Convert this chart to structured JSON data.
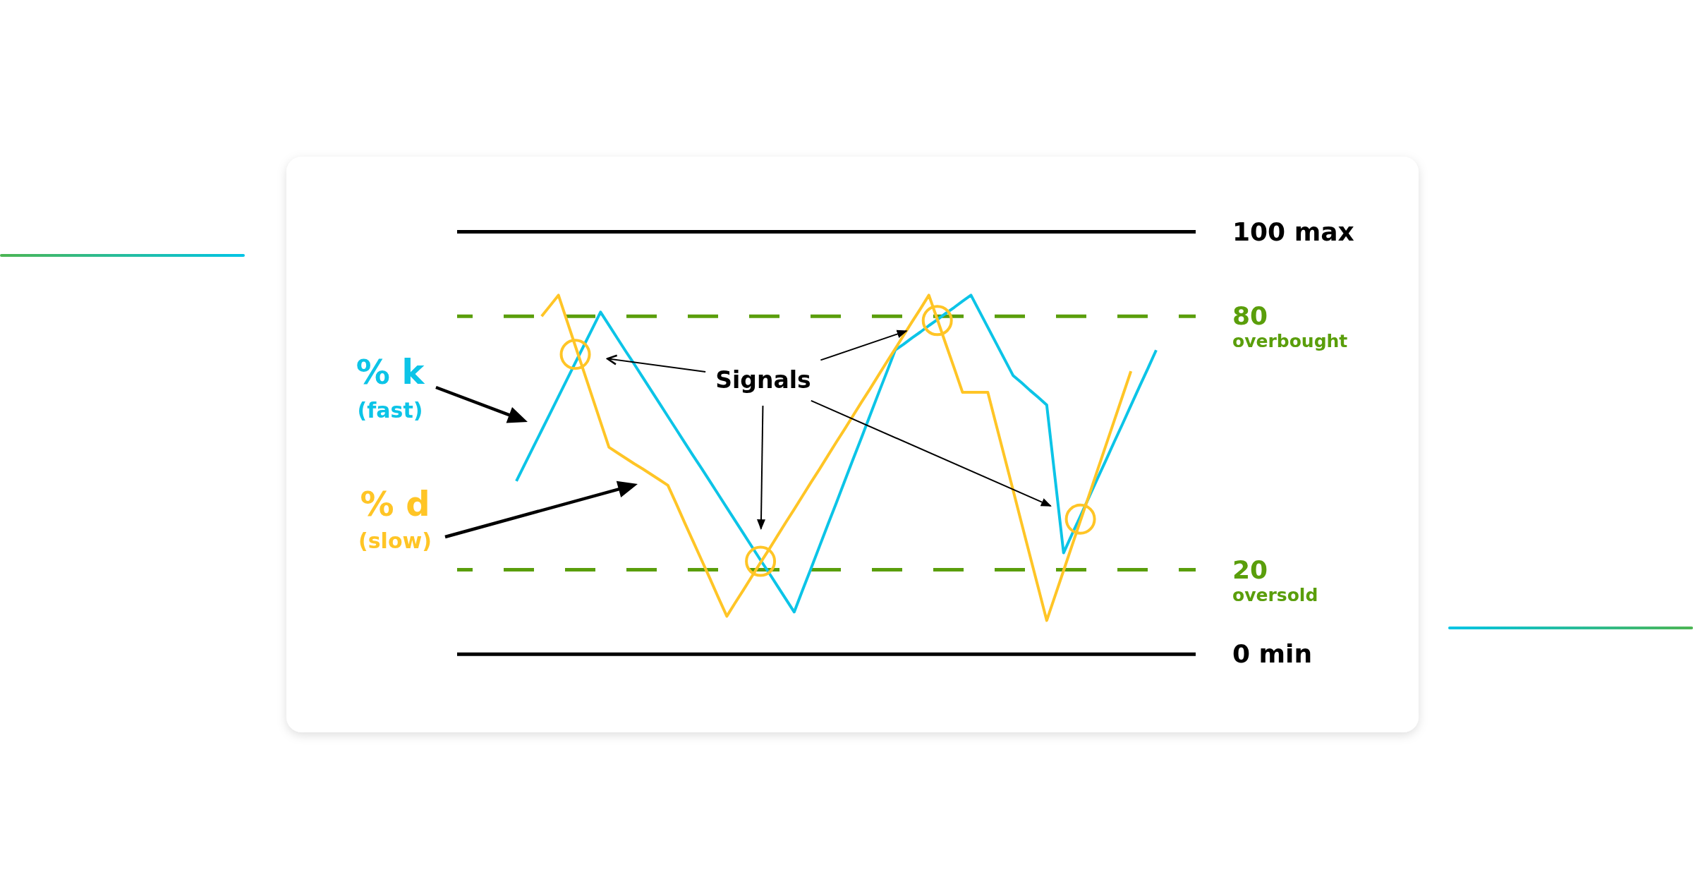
{
  "chart_data": {
    "type": "line",
    "ylim": [
      0,
      100
    ],
    "categories": [
      null,
      null,
      null,
      null,
      null,
      null,
      null,
      null,
      null,
      null,
      null,
      null,
      null,
      null,
      null,
      null,
      null,
      null,
      null,
      null,
      null,
      null,
      null,
      null,
      null,
      null,
      null,
      null,
      null,
      null,
      null,
      null,
      null,
      null,
      null,
      null,
      null,
      null,
      null,
      null,
      null,
      null,
      null,
      null,
      null,
      null,
      null,
      null,
      null,
      null,
      null,
      null,
      null,
      null,
      null,
      null,
      null,
      null,
      null,
      null,
      null,
      null,
      null,
      null,
      null,
      null,
      null,
      null,
      null,
      null,
      null,
      null,
      null,
      null,
      null,
      null,
      null
    ],
    "yticks": [
      {
        "value": 100,
        "label": "100 max"
      },
      80,
      20,
      {
        "value": 0,
        "label": "0 min"
      }
    ],
    "tick_labels": "y",
    "ref_lines": [
      {
        "axis": "y",
        "value": 100,
        "color": "#000000",
        "line_style": "solid"
      },
      {
        "axis": "y",
        "value": 80,
        "label": "overbought",
        "color": "#5a9e0b",
        "line_style": "dashed"
      },
      {
        "axis": "y",
        "value": 20,
        "label": "oversold",
        "color": "#5a9e0b",
        "line_style": "dashed"
      },
      {
        "axis": "y",
        "value": 0,
        "color": "#000000",
        "line_style": "solid"
      }
    ],
    "series": [
      {
        "name": "% k (fast)",
        "color": "#0cc4e7",
        "values": [
          41,
          45,
          49,
          53,
          57,
          61,
          65,
          69,
          73,
          77,
          81,
          77.9,
          74.8,
          71.7,
          68.7,
          65.6,
          62.5,
          59.4,
          56.3,
          53.2,
          50.1,
          47,
          44,
          40.9,
          37.8,
          34.7,
          31.6,
          28.5,
          25.4,
          22.3,
          19.3,
          16.2,
          13.1,
          10,
          15.2,
          20.3,
          25.5,
          30.7,
          35.8,
          41,
          46.2,
          51.3,
          56.5,
          61.7,
          66.8,
          72,
          73.4,
          74.9,
          76.3,
          77.8,
          79.2,
          80.7,
          82.1,
          83.6,
          85,
          81.2,
          77.4,
          73.6,
          69.8,
          66,
          64.3,
          62.5,
          60.8,
          59,
          41.5,
          24,
          28.4,
          32.7,
          37.1,
          41.5,
          45.8,
          50.2,
          54.5,
          58.9,
          63.3,
          67.6,
          72
        ]
      },
      {
        "name": "% d (slow)",
        "color": "#ffc526",
        "values": [
          null,
          null,
          null,
          80,
          82.5,
          85,
          79,
          73,
          67,
          61,
          55,
          49,
          47.7,
          46.4,
          45.1,
          43.9,
          42.6,
          41.3,
          40,
          35.6,
          31.1,
          26.7,
          22.3,
          17.9,
          13.4,
          9,
          12.2,
          15.3,
          18.5,
          21.7,
          24.8,
          28,
          31.2,
          34.3,
          37.5,
          40.7,
          43.8,
          47,
          50.2,
          53.3,
          56.5,
          59.7,
          62.8,
          66,
          69.2,
          72.3,
          75.5,
          78.7,
          81.8,
          85,
          79.3,
          73.5,
          67.8,
          62,
          62,
          62,
          62,
          54.3,
          46.6,
          38.9,
          31.1,
          23.4,
          15.7,
          8,
          13.9,
          19.8,
          25.7,
          31.6,
          37.5,
          43.4,
          49.3,
          55.2,
          61.1,
          67,
          null,
          null,
          null
        ]
      },
      {
        "type": "scatter",
        "marker": "circle",
        "color": "#ffc526",
        "values": [
          null,
          null,
          null,
          null,
          null,
          null,
          null,
          71,
          null,
          null,
          null,
          null,
          null,
          null,
          null,
          null,
          null,
          null,
          null,
          null,
          null,
          null,
          null,
          null,
          null,
          null,
          null,
          null,
          null,
          22,
          null,
          null,
          null,
          null,
          null,
          null,
          null,
          null,
          null,
          null,
          null,
          null,
          null,
          null,
          null,
          null,
          null,
          null,
          null,
          null,
          79,
          null,
          null,
          null,
          null,
          null,
          null,
          null,
          null,
          null,
          null,
          null,
          null,
          null,
          null,
          null,
          null,
          32,
          null,
          null,
          null,
          null,
          null,
          null,
          null,
          null,
          null
        ]
      }
    ],
    "annotations": [
      "Signals"
    ]
  }
}
